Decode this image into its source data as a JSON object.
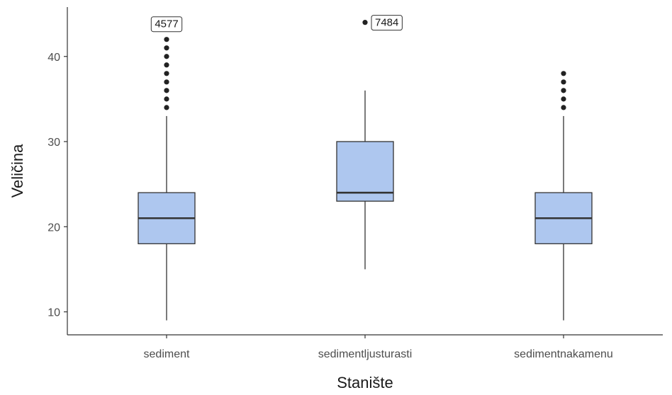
{
  "chart_data": {
    "type": "box",
    "title": "",
    "xlabel": "Stanište",
    "ylabel": "Veličina",
    "ylim": [
      7.3,
      45.8
    ],
    "yticks": [
      10,
      20,
      30,
      40
    ],
    "grid": false,
    "legend": "none",
    "colors": {
      "box_fill": "#aec7ef",
      "box_stroke": "#333333",
      "axis": "#333333",
      "point": "#222222"
    },
    "categories": [
      "sediment",
      "sedimentljusturasti",
      "sedimentnakamenu"
    ],
    "boxes": [
      {
        "category": "sediment",
        "whisker_low": 9,
        "q1": 18,
        "median": 21,
        "q3": 24,
        "whisker_high": 33,
        "outliers": [
          34,
          35,
          36,
          37,
          38,
          39,
          40,
          41,
          42
        ],
        "labeled_outlier": {
          "label": "4577",
          "value": 42
        }
      },
      {
        "category": "sedimentljusturasti",
        "whisker_low": 15,
        "q1": 23,
        "median": 24,
        "q3": 30,
        "whisker_high": 36,
        "outliers": [
          44
        ],
        "labeled_outlier": {
          "label": "7484",
          "value": 44
        }
      },
      {
        "category": "sedimentnakamenu",
        "whisker_low": 9,
        "q1": 18,
        "median": 21,
        "q3": 24,
        "whisker_high": 33,
        "outliers": [
          34,
          35,
          36,
          37,
          38
        ],
        "labeled_outlier": null
      }
    ]
  }
}
